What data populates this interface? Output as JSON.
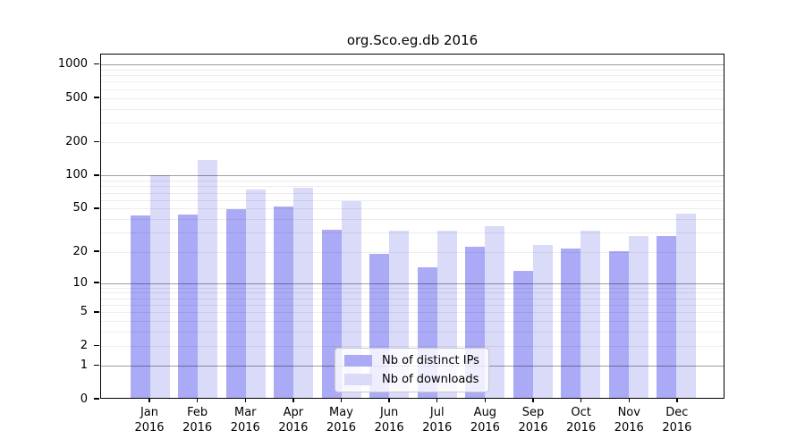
{
  "chart_data": {
    "type": "bar",
    "title": "org.Sco.eg.db 2016",
    "scale": "log1p",
    "grid": true,
    "ylim": [
      0,
      1240
    ],
    "y_ticks": [
      0,
      1,
      2,
      5,
      10,
      20,
      50,
      100,
      200,
      500,
      1000
    ],
    "categories": [
      "Jan",
      "Feb",
      "Mar",
      "Apr",
      "May",
      "Jun",
      "Jul",
      "Aug",
      "Sep",
      "Oct",
      "Nov",
      "Dec"
    ],
    "x_year_label": "2016",
    "legend_position": "lower center",
    "series": [
      {
        "name": "Nb of distinct IPs",
        "color": "#aaaaf7",
        "values": [
          43,
          44,
          49,
          52,
          32,
          19,
          14,
          22,
          13,
          21,
          20,
          28
        ]
      },
      {
        "name": "Nb of downloads",
        "color": "#dadaf9",
        "values": [
          100,
          137,
          75,
          77,
          58,
          31,
          31,
          34,
          23,
          31,
          28,
          45
        ]
      }
    ]
  }
}
